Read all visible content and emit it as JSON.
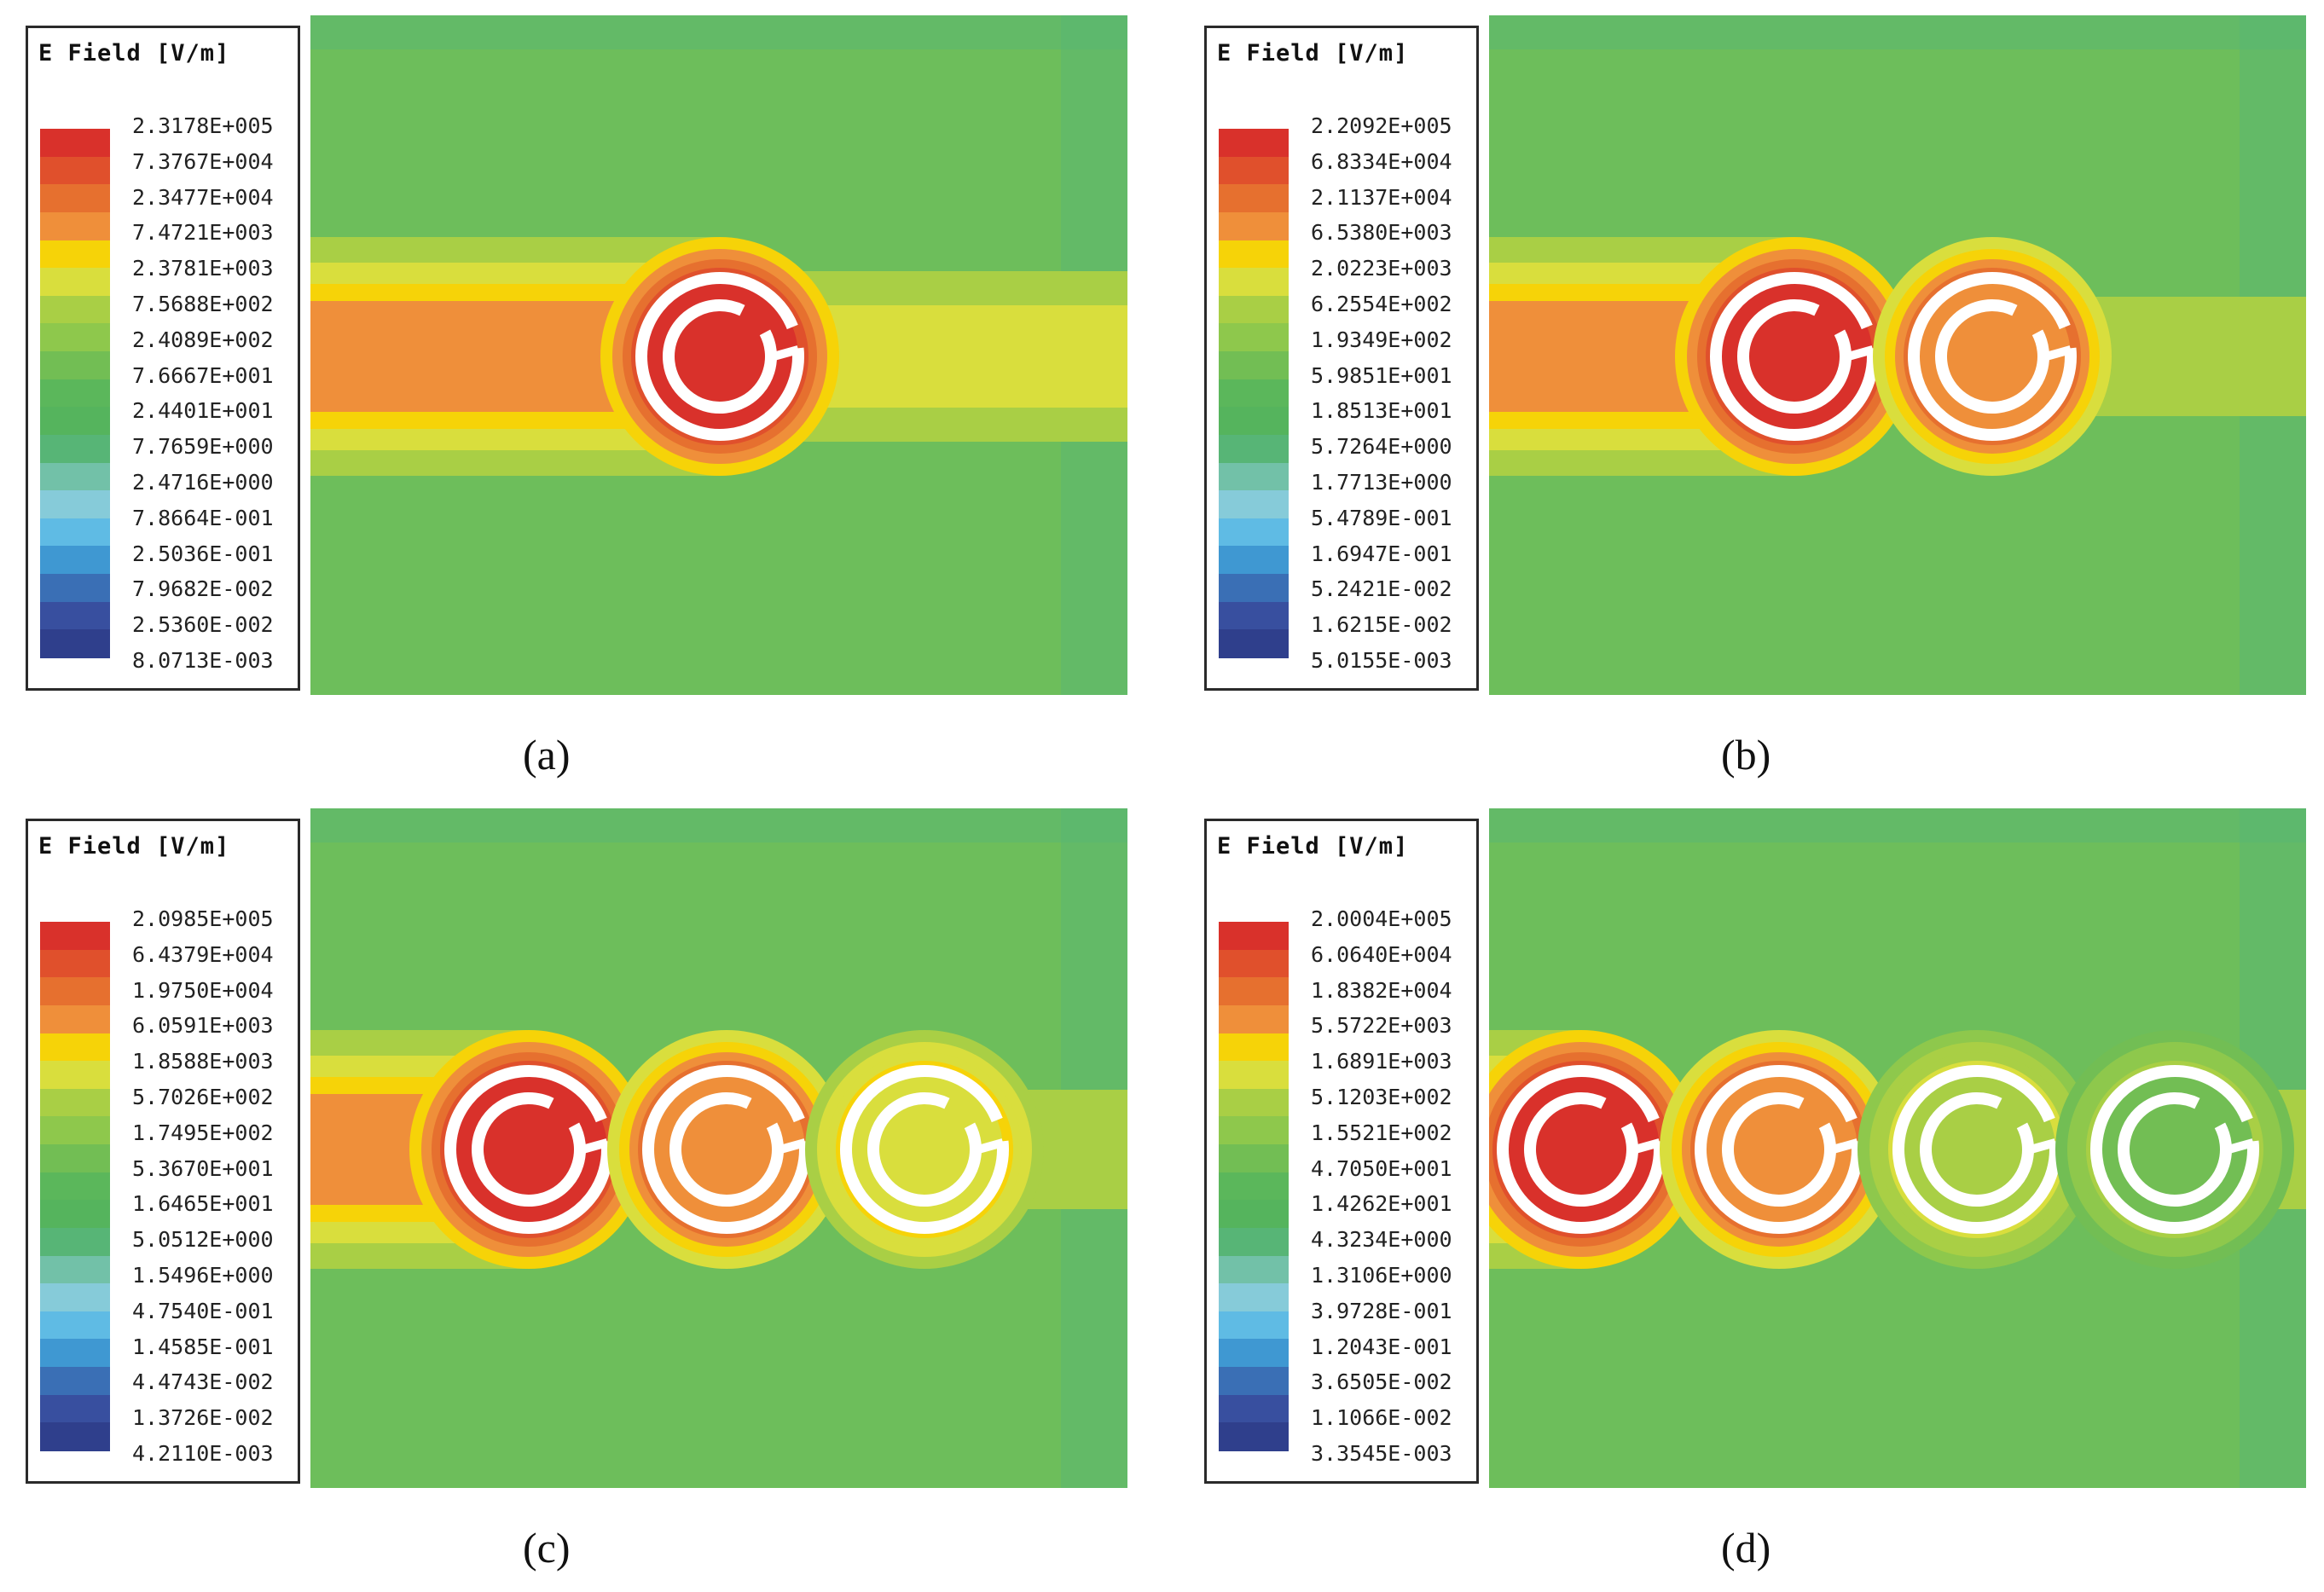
{
  "colors": {
    "scale": [
      "#d9312b",
      "#e0502c",
      "#e6702f",
      "#ef8f3a",
      "#f6d308",
      "#d9de3d",
      "#a9cf45",
      "#8ec84c",
      "#72be54",
      "#5bb75b",
      "#55b45d",
      "#57b576",
      "#72c1a8",
      "#86cbd9",
      "#5fbbe4",
      "#3f98d2",
      "#3a6fb5",
      "#384f9f",
      "#2f3f8c"
    ],
    "background": "#6dbe5b"
  },
  "panels": [
    {
      "id": "a",
      "caption": "(a)",
      "legend_title": "E Field [V/m]",
      "ticks": [
        "2.3178E+005",
        "7.3767E+004",
        "2.3477E+004",
        "7.4721E+003",
        "2.3781E+003",
        "7.5688E+002",
        "2.4089E+002",
        "7.6667E+001",
        "2.4401E+001",
        "7.7659E+000",
        "2.4716E+000",
        "7.8664E-001",
        "2.5036E-001",
        "7.9682E-002",
        "2.5360E-002",
        "8.0713E-003"
      ],
      "rings": [
        {
          "level": "red"
        }
      ]
    },
    {
      "id": "b",
      "caption": "(b)",
      "legend_title": "E Field [V/m]",
      "ticks": [
        "2.2092E+005",
        "6.8334E+004",
        "2.1137E+004",
        "6.5380E+003",
        "2.0223E+003",
        "6.2554E+002",
        "1.9349E+002",
        "5.9851E+001",
        "1.8513E+001",
        "5.7264E+000",
        "1.7713E+000",
        "5.4789E-001",
        "1.6947E-001",
        "5.2421E-002",
        "1.6215E-002",
        "5.0155E-003"
      ],
      "rings": [
        {
          "level": "red"
        },
        {
          "level": "orange"
        }
      ]
    },
    {
      "id": "c",
      "caption": "(c)",
      "legend_title": "E Field [V/m]",
      "ticks": [
        "2.0985E+005",
        "6.4379E+004",
        "1.9750E+004",
        "6.0591E+003",
        "1.8588E+003",
        "5.7026E+002",
        "1.7495E+002",
        "5.3670E+001",
        "1.6465E+001",
        "5.0512E+000",
        "1.5496E+000",
        "4.7540E-001",
        "1.4585E-001",
        "4.4743E-002",
        "1.3726E-002",
        "4.2110E-003"
      ],
      "rings": [
        {
          "level": "red"
        },
        {
          "level": "orange"
        },
        {
          "level": "yellow"
        }
      ]
    },
    {
      "id": "d",
      "caption": "(d)",
      "legend_title": "E Field [V/m]",
      "ticks": [
        "2.0004E+005",
        "6.0640E+004",
        "1.8382E+004",
        "5.5722E+003",
        "1.6891E+003",
        "5.1203E+002",
        "1.5521E+002",
        "4.7050E+001",
        "1.4262E+001",
        "4.3234E+000",
        "1.3106E+000",
        "3.9728E-001",
        "1.2043E-001",
        "3.6505E-002",
        "1.1066E-002",
        "3.3545E-003"
      ],
      "rings": [
        {
          "level": "red"
        },
        {
          "level": "orange"
        },
        {
          "level": "light-green"
        },
        {
          "level": "green"
        }
      ]
    }
  ]
}
